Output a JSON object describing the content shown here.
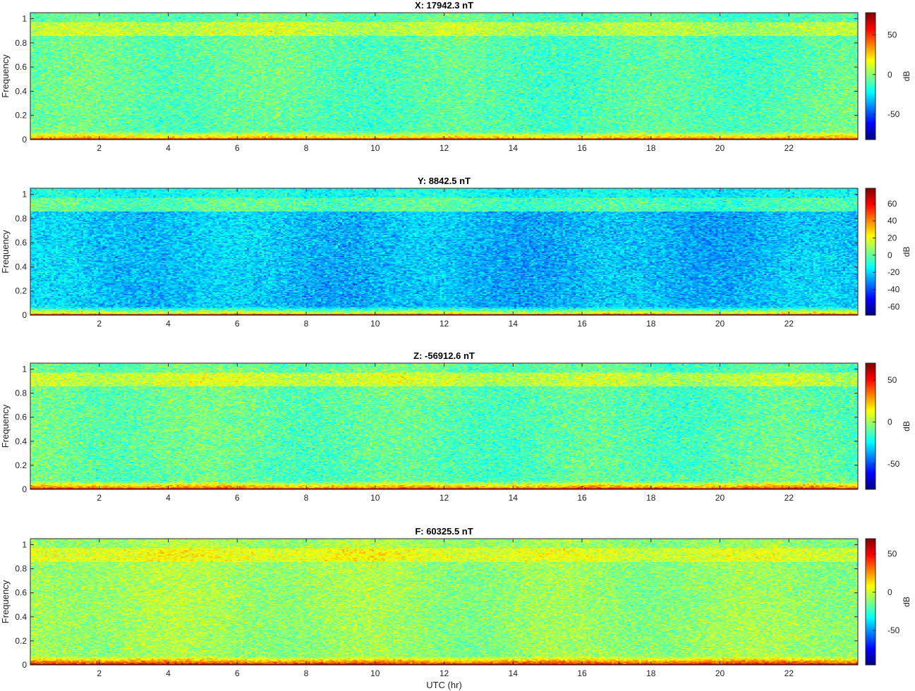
{
  "chart_data": [
    {
      "type": "heatmap",
      "title": "X: 17942.3 nT",
      "ylabel": "Frequency",
      "xlabel": "",
      "xlim": [
        0,
        24
      ],
      "ylim": [
        0,
        1.05
      ],
      "xticks": [
        "2",
        "4",
        "6",
        "8",
        "10",
        "12",
        "14",
        "16",
        "18",
        "20",
        "22"
      ],
      "yticks": [
        "0",
        "0.2",
        "0.4",
        "0.6",
        "0.8",
        "1"
      ],
      "colorbar": {
        "label": "dB",
        "range": [
          -82,
          78
        ],
        "ticks": [
          "50",
          "0",
          "-50"
        ],
        "tick_values": [
          50,
          0,
          -50
        ]
      },
      "colormap": "jet",
      "levels_db": {
        "band_floor": 75,
        "low_freq": 30,
        "background": -8,
        "high_band": 7,
        "top": -8
      }
    },
    {
      "type": "heatmap",
      "title": "Y: 8842.5 nT",
      "ylabel": "Frequency",
      "xlabel": "",
      "xlim": [
        0,
        24
      ],
      "ylim": [
        0,
        1.05
      ],
      "xticks": [
        "2",
        "4",
        "6",
        "8",
        "10",
        "12",
        "14",
        "16",
        "18",
        "20",
        "22"
      ],
      "yticks": [
        "0",
        "0.2",
        "0.4",
        "0.6",
        "0.8",
        "1"
      ],
      "colorbar": {
        "label": "dB",
        "range": [
          -70,
          78
        ],
        "ticks": [
          "60",
          "40",
          "20",
          "0",
          "-20",
          "-40",
          "-60"
        ],
        "tick_values": [
          60,
          40,
          20,
          0,
          -20,
          -40,
          -60
        ]
      },
      "colormap": "jet",
      "levels_db": {
        "band_floor": 75,
        "low_freq": 25,
        "background": -24,
        "high_band": -3,
        "top": -14
      }
    },
    {
      "type": "heatmap",
      "title": "Z: -56912.6 nT",
      "ylabel": "Frequency",
      "xlabel": "",
      "xlim": [
        0,
        24
      ],
      "ylim": [
        0,
        1.05
      ],
      "xticks": [
        "2",
        "4",
        "6",
        "8",
        "10",
        "12",
        "14",
        "16",
        "18",
        "20",
        "22"
      ],
      "yticks": [
        "0",
        "0.2",
        "0.4",
        "0.6",
        "0.8",
        "1"
      ],
      "colorbar": {
        "label": "dB",
        "range": [
          -80,
          70
        ],
        "ticks": [
          "50",
          "0",
          "-50"
        ],
        "tick_values": [
          50,
          0,
          -50
        ]
      },
      "colormap": "jet",
      "levels_db": {
        "band_floor": 66,
        "low_freq": 33,
        "background": -10,
        "high_band": 5,
        "top": -10
      }
    },
    {
      "type": "heatmap",
      "title": "F: 60325.5 nT",
      "ylabel": "Frequency",
      "xlabel": "UTC (hr)",
      "xlim": [
        0,
        24
      ],
      "ylim": [
        0,
        1.05
      ],
      "xticks": [
        "2",
        "4",
        "6",
        "8",
        "10",
        "12",
        "14",
        "16",
        "18",
        "20",
        "22"
      ],
      "yticks": [
        "0",
        "0.2",
        "0.4",
        "0.6",
        "0.8",
        "1"
      ],
      "colorbar": {
        "label": "dB",
        "range": [
          -95,
          70
        ],
        "ticks": [
          "50",
          "0",
          "-50"
        ],
        "tick_values": [
          50,
          0,
          -50
        ]
      },
      "colormap": "jet",
      "levels_db": {
        "band_floor": 66,
        "low_freq": 38,
        "background": -8,
        "high_band": 4,
        "top": -8
      }
    }
  ]
}
